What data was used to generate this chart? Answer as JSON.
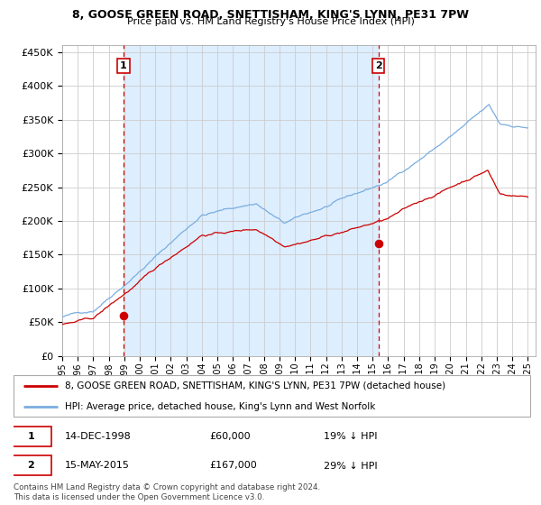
{
  "title1": "8, GOOSE GREEN ROAD, SNETTISHAM, KING'S LYNN, PE31 7PW",
  "title2": "Price paid vs. HM Land Registry's House Price Index (HPI)",
  "legend_line1": "8, GOOSE GREEN ROAD, SNETTISHAM, KING'S LYNN, PE31 7PW (detached house)",
  "legend_line2": "HPI: Average price, detached house, King's Lynn and West Norfolk",
  "sale1_date": "14-DEC-1998",
  "sale1_price": "£60,000",
  "sale1_hpi": "19% ↓ HPI",
  "sale2_date": "15-MAY-2015",
  "sale2_price": "£167,000",
  "sale2_hpi": "29% ↓ HPI",
  "footnote": "Contains HM Land Registry data © Crown copyright and database right 2024.\nThis data is licensed under the Open Government Licence v3.0.",
  "hpi_color": "#7aade0",
  "price_color": "#cc0000",
  "sale_dot_color": "#cc0000",
  "vline_color": "#dd0000",
  "bg_span_color": "#ddeeff",
  "grid_color": "#cccccc",
  "ylim_max": 460000,
  "yticks": [
    0,
    50000,
    100000,
    150000,
    200000,
    250000,
    300000,
    350000,
    400000,
    450000
  ],
  "sale1_year": 1998.95,
  "sale2_year": 2015.37,
  "sale1_price_val": 60000,
  "sale2_price_val": 167000
}
